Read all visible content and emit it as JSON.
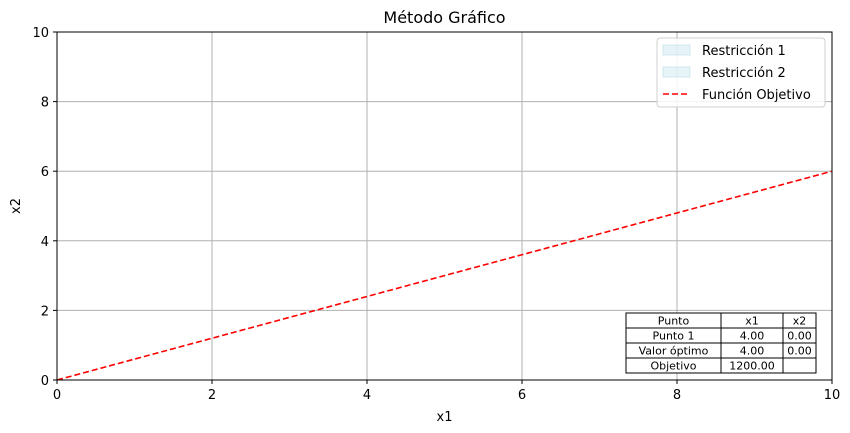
{
  "chart_data": {
    "type": "line",
    "title": "Método Gráfico",
    "xlabel": "x1",
    "ylabel": "x2",
    "xlim": [
      0,
      10
    ],
    "ylim": [
      0,
      10
    ],
    "xticks": [
      "0",
      "2",
      "4",
      "6",
      "8",
      "10"
    ],
    "yticks": [
      "0",
      "2",
      "4",
      "6",
      "8",
      "10"
    ],
    "grid": true,
    "legend_position": "top-right",
    "series": [
      {
        "name": "Restricción 1",
        "kind": "fill",
        "color": "#add8e6",
        "points": []
      },
      {
        "name": "Restricción 2",
        "kind": "fill",
        "color": "#add8e6",
        "points": []
      },
      {
        "name": "Función Objetivo",
        "kind": "dashed-line",
        "color": "#ff0000",
        "points": [
          [
            0,
            0
          ],
          [
            10,
            6
          ]
        ]
      }
    ],
    "table": {
      "position": "lower-right",
      "headers": [
        "Punto",
        "x1",
        "x2"
      ],
      "rows": [
        [
          "Punto 1",
          "4.00",
          "0.00"
        ],
        [
          "Valor óptimo",
          "4.00",
          "0.00"
        ],
        [
          "Objetivo",
          "1200.00",
          ""
        ]
      ]
    }
  }
}
